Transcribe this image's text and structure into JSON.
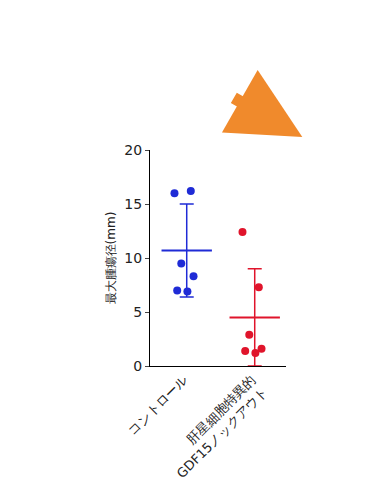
{
  "chart_data": {
    "type": "scatter",
    "categories": [
      "コントロール",
      "肝星細胞特異的\nGDF15ノックアウト"
    ],
    "values": [
      [
        16.0,
        16.2,
        9.5,
        8.3,
        7.0,
        6.9
      ],
      [
        12.4,
        7.3,
        2.9,
        1.6,
        1.4,
        1.2
      ]
    ],
    "means": [
      10.7,
      4.5
    ],
    "sd": [
      4.3,
      4.5
    ],
    "colors": [
      "#1f2bd6",
      "#e0142b"
    ],
    "marker": "circle",
    "ylabel": "最大腫瘍径(mm)",
    "ylim": [
      0,
      20
    ],
    "yticks": [
      0,
      5,
      10,
      15,
      20
    ],
    "grid": false
  }
}
